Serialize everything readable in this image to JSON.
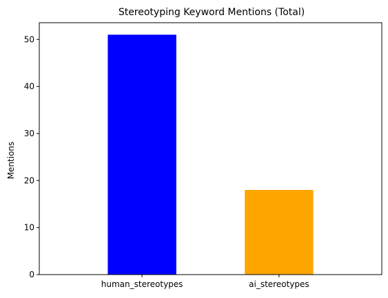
{
  "chart_data": {
    "type": "bar",
    "title": "Stereotyping Keyword Mentions (Total)",
    "xlabel": "",
    "ylabel": "Mentions",
    "categories": [
      "human_stereotypes",
      "ai_stereotypes"
    ],
    "values": [
      51,
      18
    ],
    "colors": [
      "#0000ff",
      "#ffa500"
    ],
    "ylim": [
      0,
      53.55
    ],
    "yticks": [
      0,
      10,
      20,
      30,
      40,
      50
    ],
    "ytick_labels": [
      "0",
      "10",
      "20",
      "30",
      "40",
      "50"
    ],
    "grid": false,
    "legend": "none"
  }
}
